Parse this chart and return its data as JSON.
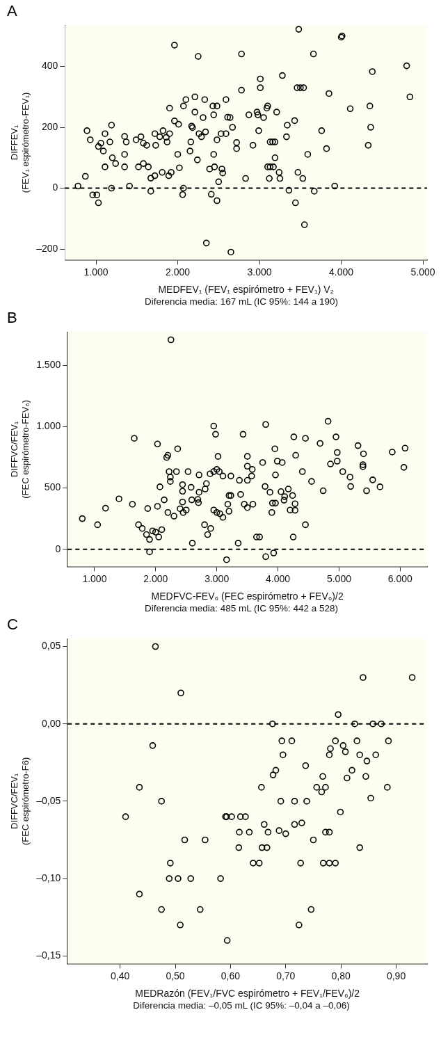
{
  "chart_data": [
    {
      "type": "scatter",
      "title": "A",
      "xlabel": "MEDFEV₁ (FEV₁ espirómetro + FEV₁) V₂",
      "ylabel": "DIFFEV₁\n(FEV₁ espirómetro-FEV₁)",
      "annotations": [
        "Diferencia media: 167 mL (IC 95%: 144 a 190)"
      ],
      "color": "#000000",
      "marker": "circle",
      "grid": false,
      "legend": false,
      "xlim": [
        620,
        5050
      ],
      "ylim": [
        -235,
        535
      ],
      "xticks": [
        {
          "value": 1000,
          "label": "1.000"
        },
        {
          "value": 2000,
          "label": "2.000"
        },
        {
          "value": 3000,
          "label": "3.000"
        },
        {
          "value": 4000,
          "label": "4.000"
        },
        {
          "value": 5000,
          "label": "5.000"
        }
      ],
      "yticks": [
        {
          "value": -200,
          "label": "–200"
        },
        0,
        200,
        400
      ],
      "ref_lines": [
        {
          "axis": "y",
          "value": 0,
          "color": "#000000",
          "line_style": "dashed"
        }
      ],
      "x": [
        780,
        870,
        890,
        930,
        1030,
        1060,
        1090,
        1110,
        1170,
        1190,
        1200,
        1110,
        1240,
        1350,
        1350,
        1350,
        1370,
        960,
        1010,
        1030,
        1190,
        1410,
        1490,
        1550,
        1580,
        1620,
        1520,
        1580,
        1640,
        1670,
        1720,
        1670,
        1720,
        1730,
        1780,
        1820,
        1860,
        1870,
        1900,
        1810,
        1890,
        1920,
        1900,
        1960,
        1960,
        2010,
        2000,
        2020,
        2070,
        2100,
        2070,
        2060,
        2160,
        2150,
        2170,
        2180,
        2210,
        2210,
        2240,
        2250,
        2260,
        2290,
        2310,
        2330,
        2340,
        2410,
        2480,
        2390,
        2430,
        2480,
        2440,
        2480,
        2440,
        2450,
        2540,
        2550,
        2500,
        2530,
        2590,
        2590,
        2610,
        3480,
        4000,
        4010,
        2780,
        3660,
        4800,
        4380,
        4840,
        3010,
        3280,
        3010,
        3460,
        3500,
        3540,
        2780,
        3850,
        2640,
        2670,
        2870,
        2970,
        2980,
        3050,
        3100,
        3090,
        3210,
        4350,
        4110,
        4360,
        4330,
        3340,
        3430,
        2990,
        3760,
        2720,
        2720,
        2920,
        3130,
        3160,
        3190,
        3330,
        3820,
        3590,
        3190,
        3100,
        3130,
        3170,
        3240,
        3470,
        2830,
        3120,
        3250,
        3530,
        3920,
        3360,
        3670,
        3440,
        2350,
        2650,
        3550
      ],
      "values": [
        7,
        39,
        189,
        159,
        137,
        148,
        122,
        179,
        152,
        207,
        100,
        70,
        81,
        70,
        111,
        170,
        152,
        -22,
        -22,
        -48,
        0,
        7,
        159,
        169,
        148,
        141,
        70,
        81,
        70,
        33,
        41,
        -10,
        179,
        141,
        169,
        189,
        167,
        152,
        179,
        52,
        41,
        52,
        263,
        470,
        221,
        210,
        111,
        67,
        270,
        291,
        0,
        -21,
        152,
        122,
        204,
        199,
        300,
        250,
        93,
        433,
        179,
        169,
        232,
        291,
        185,
        -20,
        -41,
        63,
        270,
        270,
        241,
        159,
        111,
        70,
        63,
        50,
        21,
        179,
        179,
        291,
        233,
        522,
        496,
        500,
        441,
        441,
        402,
        383,
        300,
        359,
        370,
        330,
        330,
        330,
        330,
        322,
        311,
        232,
        200,
        241,
        250,
        241,
        232,
        270,
        263,
        250,
        270,
        261,
        200,
        141,
        207,
        222,
        189,
        189,
        150,
        130,
        141,
        152,
        152,
        152,
        169,
        130,
        111,
        100,
        70,
        70,
        70,
        52,
        52,
        32,
        32,
        32,
        32,
        7,
        -7,
        -10,
        -48,
        -180,
        -210,
        -120
      ]
    },
    {
      "type": "scatter",
      "title": "B",
      "xlabel": "MEDFVC-FEV₆ (FEC espirómetro + FEV₆)/2",
      "ylabel": "DIFFVC/FEV₁\n(FEC espirómetro-FEV₆)",
      "annotations": [
        "Diferencia media: 485 mL (IC 95%: 442 a 528)"
      ],
      "color": "#000000",
      "marker": "circle",
      "grid": false,
      "legend": false,
      "xlim": [
        560,
        6440
      ],
      "ylim": [
        -140,
        1770
      ],
      "xticks": [
        {
          "value": 1000,
          "label": "1.000"
        },
        {
          "value": 2000,
          "label": "2.000"
        },
        {
          "value": 3000,
          "label": "3.000"
        },
        {
          "value": 4000,
          "label": "4.000"
        },
        {
          "value": 5000,
          "label": "5.000"
        },
        {
          "value": 6000,
          "label": "6.000"
        }
      ],
      "yticks": [
        0,
        500,
        {
          "value": 1000,
          "label": "1.000"
        },
        {
          "value": 1500,
          "label": "1.500"
        }
      ],
      "ref_lines": [
        {
          "axis": "y",
          "value": 0,
          "color": "#000000",
          "line_style": "dashed"
        }
      ],
      "x": [
        2250,
        2950,
        2980,
        1650,
        2030,
        2360,
        2200,
        2180,
        3020,
        2220,
        2340,
        2530,
        2710,
        2890,
        2950,
        3040,
        3100,
        2240,
        2240,
        2070,
        2440,
        2580,
        2440,
        2710,
        2810,
        2830,
        1400,
        1620,
        1180,
        1870,
        2030,
        2140,
        2440,
        2590,
        2690,
        3200,
        4820,
        3800,
        3430,
        4260,
        4450,
        4950,
        4690,
        5310,
        5400,
        5870,
        6080,
        3950,
        4290,
        4970,
        3500,
        3750,
        3990,
        4070,
        4860,
        4970,
        5390,
        5390,
        6060,
        3500,
        3580,
        3000,
        3230,
        3370,
        3500,
        3570,
        3960,
        4400,
        5060,
        5180,
        4550,
        5550,
        4740,
        5190,
        5450,
        5670,
        3790,
        3870,
        4170,
        4110,
        4240,
        4280,
        4280,
        3910,
        3960,
        3230,
        3390,
        3180,
        3450,
        3590,
        800,
        1050,
        1720,
        1780,
        1850,
        1900,
        1900,
        1950,
        2000,
        2050,
        2100,
        2200,
        2300,
        2400,
        2450,
        2500,
        2600,
        2700,
        2800,
        2850,
        2900,
        2950,
        3000,
        3050,
        3100,
        3160,
        3200,
        3350,
        3500,
        3650,
        3700,
        3800,
        3900,
        3930,
        4050,
        4100,
        4200,
        4250,
        4450
      ],
      "values": [
        1707,
        1004,
        937,
        904,
        858,
        819,
        766,
        748,
        757,
        633,
        633,
        633,
        606,
        615,
        633,
        633,
        597,
        588,
        553,
        509,
        527,
        505,
        473,
        465,
        491,
        535,
        411,
        367,
        335,
        332,
        350,
        403,
        385,
        403,
        406,
        438,
        1043,
        1017,
        937,
        916,
        904,
        916,
        863,
        845,
        778,
        792,
        824,
        819,
        766,
        789,
        757,
        707,
        718,
        707,
        695,
        718,
        689,
        673,
        668,
        677,
        651,
        651,
        597,
        562,
        562,
        597,
        606,
        633,
        633,
        588,
        553,
        566,
        477,
        512,
        477,
        509,
        512,
        465,
        491,
        429,
        438,
        371,
        318,
        376,
        376,
        438,
        447,
        367,
        367,
        367,
        250,
        200,
        200,
        170,
        120,
        80,
        -21,
        150,
        140,
        100,
        160,
        300,
        270,
        330,
        300,
        320,
        50,
        380,
        200,
        120,
        170,
        320,
        300,
        290,
        260,
        -85,
        310,
        50,
        340,
        100,
        100,
        -60,
        300,
        -30,
        470,
        400,
        320,
        100,
        200
      ]
    },
    {
      "type": "scatter",
      "title": "C",
      "xlabel": "MEDRazón (FEV₁/FVC espirómetro + FEV₁/FEV₆)/2",
      "ylabel": "DIFFVC/FEV₁\n(FEC espirómetro-F6)",
      "annotations": [
        "Diferencia media: –0,05 mL (IC 95%: –0,04 a –0,06)"
      ],
      "color": "#000000",
      "marker": "circle",
      "grid": false,
      "legend": false,
      "xlim": [
        0.305,
        0.956
      ],
      "ylim": [
        -0.155,
        0.055
      ],
      "xticks": [
        {
          "value": 0.4,
          "label": "0,40"
        },
        {
          "value": 0.5,
          "label": "0,50"
        },
        {
          "value": 0.6,
          "label": "0,60"
        },
        {
          "value": 0.7,
          "label": "0,70"
        },
        {
          "value": 0.8,
          "label": "0,80"
        },
        {
          "value": 0.9,
          "label": "0,90"
        }
      ],
      "yticks": [
        {
          "value": -0.15,
          "label": "–0,15"
        },
        {
          "value": -0.1,
          "label": "–0,10"
        },
        {
          "value": -0.05,
          "label": "–0,05"
        },
        {
          "value": 0,
          "label": "0,00"
        },
        {
          "value": 0.05,
          "label": "0,05"
        }
      ],
      "ref_lines": [
        {
          "axis": "y",
          "value": 0,
          "color": "#000000",
          "line_style": "dashed"
        }
      ],
      "x": [
        0.464,
        0.51,
        0.459,
        0.435,
        0.475,
        0.41,
        0.517,
        0.554,
        0.491,
        0.489,
        0.505,
        0.528,
        0.582,
        0.593,
        0.84,
        0.929,
        0.795,
        0.676,
        0.825,
        0.858,
        0.873,
        0.693,
        0.711,
        0.695,
        0.736,
        0.682,
        0.677,
        0.656,
        0.691,
        0.716,
        0.738,
        0.618,
        0.591,
        0.602,
        0.627,
        0.661,
        0.668,
        0.688,
        0.7,
        0.716,
        0.729,
        0.616,
        0.634,
        0.615,
        0.657,
        0.666,
        0.75,
        0.772,
        0.779,
        0.799,
        0.765,
        0.756,
        0.772,
        0.767,
        0.79,
        0.804,
        0.808,
        0.781,
        0.779,
        0.829,
        0.834,
        0.847,
        0.863,
        0.886,
        0.82,
        0.811,
        0.845,
        0.884,
        0.854,
        0.834,
        0.641,
        0.652,
        0.727,
        0.768,
        0.779,
        0.79,
        0.435,
        0.475,
        0.509,
        0.545,
        0.594,
        0.724,
        0.746
      ],
      "values": [
        0.05,
        0.02,
        -0.014,
        -0.041,
        -0.05,
        -0.06,
        -0.075,
        -0.075,
        -0.09,
        -0.1,
        -0.1,
        -0.1,
        -0.1,
        -0.06,
        0.03,
        0.03,
        0.006,
        0,
        0,
        0,
        0,
        -0.011,
        -0.011,
        -0.02,
        -0.027,
        -0.03,
        -0.033,
        -0.041,
        -0.05,
        -0.05,
        -0.05,
        -0.06,
        -0.06,
        -0.06,
        -0.06,
        -0.065,
        -0.07,
        -0.069,
        -0.071,
        -0.065,
        -0.064,
        -0.07,
        -0.07,
        -0.08,
        -0.08,
        -0.08,
        -0.075,
        -0.07,
        -0.07,
        -0.057,
        -0.044,
        -0.041,
        -0.041,
        -0.034,
        -0.011,
        -0.014,
        -0.018,
        -0.016,
        -0.02,
        -0.011,
        -0.02,
        -0.024,
        -0.02,
        -0.011,
        -0.03,
        -0.035,
        -0.034,
        -0.041,
        -0.048,
        -0.08,
        -0.09,
        -0.09,
        -0.09,
        -0.09,
        -0.09,
        -0.09,
        -0.11,
        -0.12,
        -0.13,
        -0.12,
        -0.14,
        -0.13,
        -0.12
      ]
    }
  ]
}
